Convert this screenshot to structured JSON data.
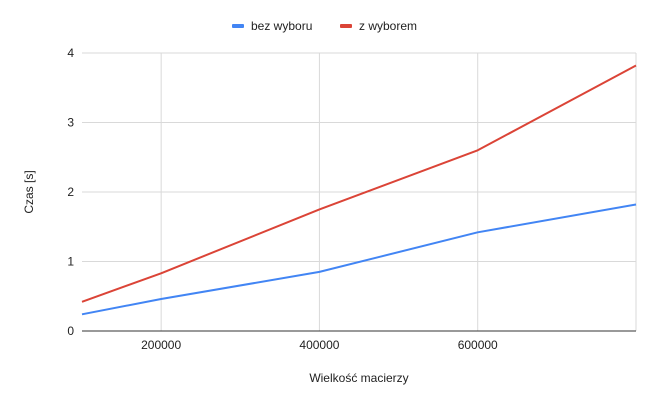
{
  "chart_data": {
    "type": "line",
    "title": "",
    "xlabel": "Wielkość macierzy",
    "ylabel": "Czas [s]",
    "xlim": [
      100000,
      800000
    ],
    "ylim": [
      0,
      4
    ],
    "x_ticks": [
      200000,
      400000,
      600000
    ],
    "x_tick_labels": [
      "200000",
      "400000",
      "600000"
    ],
    "y_ticks": [
      0,
      1,
      2,
      3,
      4
    ],
    "y_tick_labels": [
      "0",
      "1",
      "2",
      "3",
      "4"
    ],
    "grid": true,
    "legend_position": "top",
    "series": [
      {
        "name": "bez wyboru",
        "color": "#4285f4",
        "x": [
          100000,
          200000,
          400000,
          600000,
          800000
        ],
        "y": [
          0.24,
          0.46,
          0.85,
          1.42,
          1.82
        ]
      },
      {
        "name": "z wyborem",
        "color": "#db4437",
        "x": [
          100000,
          200000,
          400000,
          600000,
          800000
        ],
        "y": [
          0.42,
          0.83,
          1.75,
          2.6,
          3.82
        ]
      }
    ]
  }
}
